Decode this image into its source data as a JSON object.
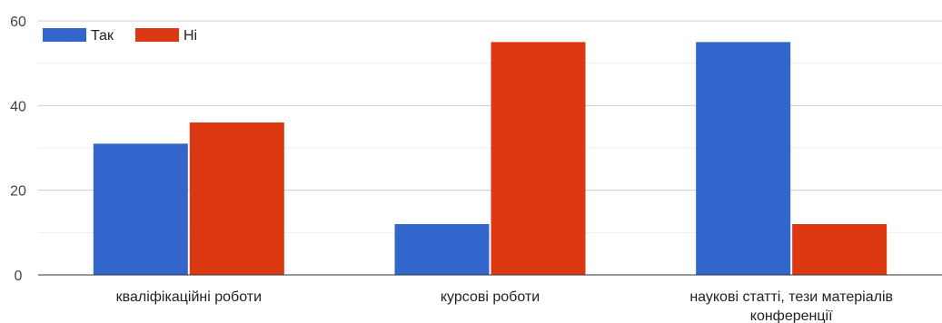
{
  "chart_data": {
    "type": "bar",
    "categories": [
      [
        "кваліфікаційні роботи"
      ],
      [
        "курсові роботи"
      ],
      [
        "наукові статті, тези матеріалів",
        "конференції"
      ]
    ],
    "series": [
      {
        "name": "Так",
        "color": "#3366cc",
        "values": [
          31,
          12,
          55
        ]
      },
      {
        "name": "Ні",
        "color": "#dc3912",
        "values": [
          36,
          55,
          12
        ]
      }
    ],
    "ylim": [
      0,
      60
    ],
    "yticks": [
      0,
      20,
      40,
      60
    ],
    "minor_grid": [
      10,
      30,
      50
    ],
    "grid": true,
    "legend_position": "top-left"
  }
}
